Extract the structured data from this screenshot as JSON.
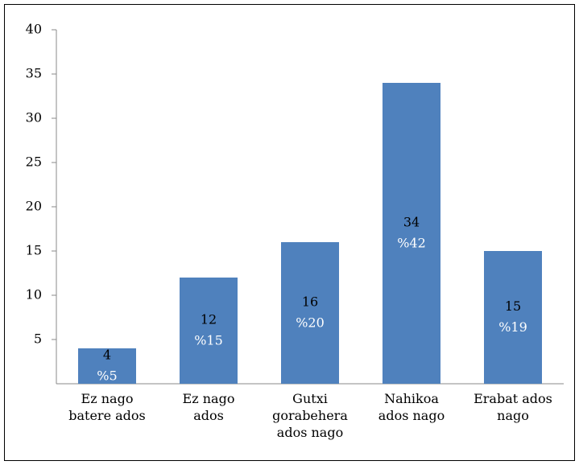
{
  "chart_data": {
    "type": "bar",
    "categories": [
      "Ez nago\nbatere ados",
      "Ez nago\nados",
      "Gutxi\ngorabehera\nados nago",
      "Nahikoa\nados nago",
      "Erabat ados\nnago"
    ],
    "values": [
      4,
      12,
      16,
      34,
      15
    ],
    "percent_labels": [
      "%5",
      "%15",
      "%20",
      "%42",
      "%19"
    ],
    "color": "#4f81bd",
    "ylim": [
      0,
      40
    ],
    "yticks": [
      5,
      10,
      15,
      20,
      25,
      30,
      35,
      40
    ],
    "grid": false
  }
}
